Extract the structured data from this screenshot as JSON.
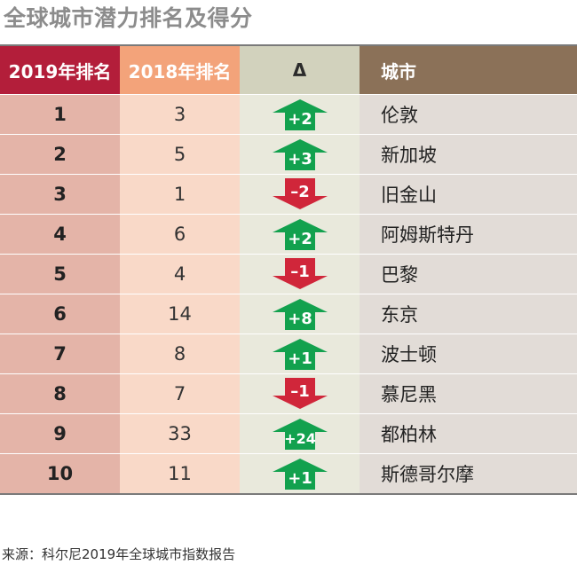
{
  "title": "全球城市潜力排名及得分",
  "headers": {
    "rank2019": "2019年排名",
    "rank2018": "2018年排名",
    "delta": "Δ",
    "city": "城市"
  },
  "colors": {
    "up": "#12a14e",
    "down": "#d0263a",
    "header_2019": "#b31e3a",
    "header_2018": "#f3a37a",
    "header_delta": "#d2d2bd",
    "header_city": "#8b7158"
  },
  "source": "来源：科尔尼2019年全球城市指数报告",
  "chart_data": {
    "type": "table",
    "columns": [
      "2019年排名",
      "2018年排名",
      "Δ",
      "城市"
    ],
    "rows": [
      {
        "rank2019": "1",
        "rank2018": "3",
        "delta": "+2",
        "direction": "up",
        "city": "伦敦"
      },
      {
        "rank2019": "2",
        "rank2018": "5",
        "delta": "+3",
        "direction": "up",
        "city": "新加坡"
      },
      {
        "rank2019": "3",
        "rank2018": "1",
        "delta": "–2",
        "direction": "down",
        "city": "旧金山"
      },
      {
        "rank2019": "4",
        "rank2018": "6",
        "delta": "+2",
        "direction": "up",
        "city": "阿姆斯特丹"
      },
      {
        "rank2019": "5",
        "rank2018": "4",
        "delta": "–1",
        "direction": "down",
        "city": "巴黎"
      },
      {
        "rank2019": "6",
        "rank2018": "14",
        "delta": "+8",
        "direction": "up",
        "city": "东京"
      },
      {
        "rank2019": "7",
        "rank2018": "8",
        "delta": "+1",
        "direction": "up",
        "city": "波士顿"
      },
      {
        "rank2019": "8",
        "rank2018": "7",
        "delta": "–1",
        "direction": "down",
        "city": "慕尼黑"
      },
      {
        "rank2019": "9",
        "rank2018": "33",
        "delta": "+24",
        "direction": "up",
        "city": "都柏林"
      },
      {
        "rank2019": "10",
        "rank2018": "11",
        "delta": "+1",
        "direction": "up",
        "city": "斯德哥尔摩"
      }
    ]
  }
}
